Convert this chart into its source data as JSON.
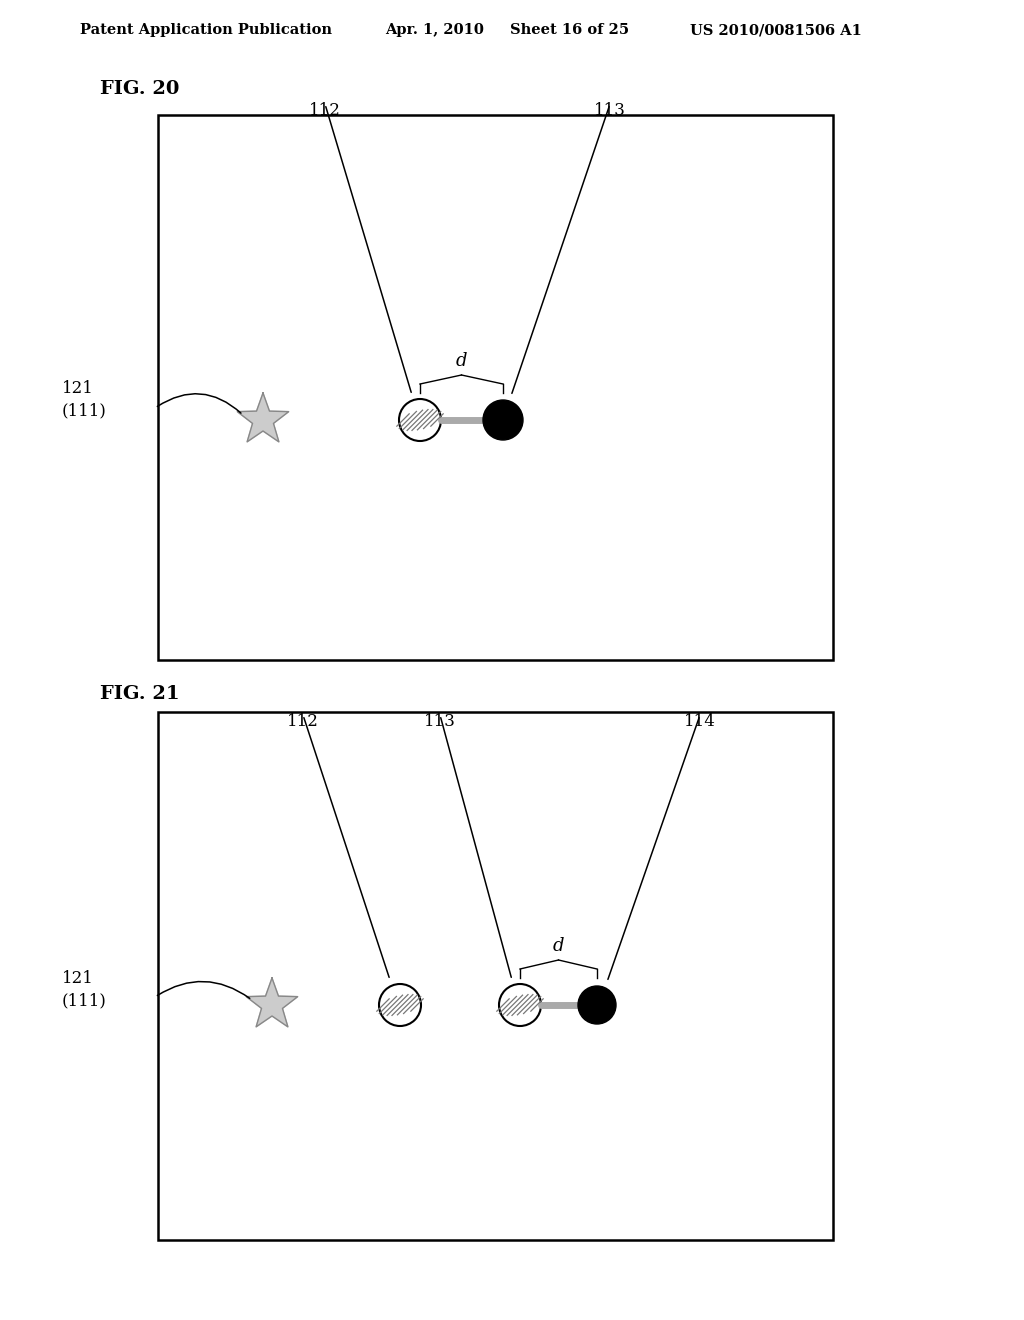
{
  "header_left": "Patent Application Publication",
  "header_date": "Apr. 1, 2010",
  "header_sheet": "Sheet 16 of 25",
  "header_patent": "US 2010/0081506 A1",
  "fig20_label": "FIG. 20",
  "fig21_label": "FIG. 21",
  "lbl_112": "112",
  "lbl_113": "113",
  "lbl_114": "114",
  "lbl_121_111": "121\n(111)",
  "lbl_d": "d",
  "bg": "#ffffff",
  "black": "#000000",
  "gray": "#888888",
  "lightgray": "#cccccc"
}
